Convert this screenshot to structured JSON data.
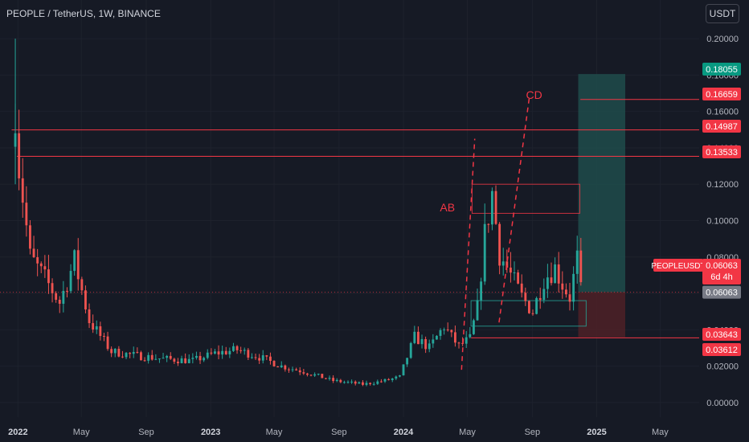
{
  "header": {
    "pair_title": "PEOPLE / TetherUS, 1W, BINANCE",
    "currency_button": "USDT"
  },
  "colors": {
    "background": "#161a25",
    "grid": "#1e222d",
    "bull": "#26a69a",
    "bear": "#ef5350",
    "level_line": "#f23645",
    "target_zone": "#1f4c4b",
    "stop_zone": "#4a2027",
    "current_price_tag": "#787b86"
  },
  "chart_data": {
    "type": "candlestick",
    "ylim": [
      -0.008,
      0.208
    ],
    "yticks": [
      "0.20000",
      "0.18000",
      "0.16000",
      "0.14000",
      "0.12000",
      "0.10000",
      "0.08000",
      "0.06000",
      "0.04000",
      "0.02000",
      "0.00000"
    ],
    "ytick_values": [
      0.2,
      0.18,
      0.16,
      0.14,
      0.12,
      0.1,
      0.08,
      0.06,
      0.04,
      0.02,
      0.0
    ],
    "xlim": [
      "2021-11-28",
      "2025-07-14"
    ],
    "xticks": [
      {
        "label": "2022",
        "date": "2022-01-01"
      },
      {
        "label": "May",
        "date": "2022-05-01"
      },
      {
        "label": "Sep",
        "date": "2022-09-01"
      },
      {
        "label": "2023",
        "date": "2023-01-01"
      },
      {
        "label": "May",
        "date": "2023-05-01"
      },
      {
        "label": "Sep",
        "date": "2023-09-01"
      },
      {
        "label": "2024",
        "date": "2024-01-01"
      },
      {
        "label": "May",
        "date": "2024-05-01"
      },
      {
        "label": "Sep",
        "date": "2024-09-01"
      },
      {
        "label": "2025",
        "date": "2025-01-01"
      },
      {
        "label": "May",
        "date": "2025-05-01"
      }
    ],
    "candle_start": "2021-12-27",
    "candle_interval_days": 7,
    "close_path": [
      [
        0,
        0.148
      ],
      [
        1,
        0.13
      ],
      [
        4,
        0.08
      ],
      [
        8,
        0.068
      ],
      [
        12,
        0.055
      ],
      [
        16,
        0.078
      ],
      [
        20,
        0.045
      ],
      [
        26,
        0.028
      ],
      [
        32,
        0.026
      ],
      [
        40,
        0.024
      ],
      [
        48,
        0.023
      ],
      [
        54,
        0.027
      ],
      [
        60,
        0.029
      ],
      [
        66,
        0.025
      ],
      [
        72,
        0.02
      ],
      [
        78,
        0.017
      ],
      [
        86,
        0.012
      ],
      [
        94,
        0.01
      ],
      [
        100,
        0.012
      ],
      [
        104,
        0.014
      ],
      [
        108,
        0.036
      ],
      [
        112,
        0.03
      ],
      [
        116,
        0.042
      ],
      [
        118,
        0.036
      ],
      [
        120,
        0.031
      ],
      [
        123,
        0.035
      ],
      [
        125,
        0.052
      ],
      [
        127,
        0.092
      ],
      [
        129,
        0.115
      ],
      [
        131,
        0.082
      ],
      [
        134,
        0.07
      ],
      [
        137,
        0.058
      ],
      [
        140,
        0.05
      ],
      [
        143,
        0.068
      ],
      [
        146,
        0.074
      ],
      [
        148,
        0.065
      ],
      [
        150,
        0.058
      ],
      [
        152,
        0.079
      ],
      [
        153,
        0.061
      ]
    ],
    "levels": [
      {
        "price": 0.18055,
        "label": "0.18055",
        "color": "#089981"
      },
      {
        "price": 0.16659,
        "label": "0.16659",
        "color": "#f23645"
      },
      {
        "price": 0.14987,
        "label": "0.14987",
        "color": "#f23645"
      },
      {
        "price": 0.13533,
        "label": "0.13533",
        "color": "#f23645"
      },
      {
        "price": 0.03643,
        "label": "0.03643",
        "color": "#f23645"
      },
      {
        "price": 0.03612,
        "label": "0.03612",
        "color": "#f23645"
      }
    ],
    "current_price": {
      "price": 0.06063,
      "label": "0.06063"
    },
    "symbol_tag": {
      "symbol": "PEOPLEUSDT",
      "price": "0.06063",
      "countdown": "6d 4h"
    },
    "annotations": [
      {
        "text": "AB",
        "price": 0.105,
        "date": "2024-03-10",
        "color": "#f23645"
      },
      {
        "text": "CD",
        "price": 0.167,
        "date": "2024-08-20",
        "color": "#f23645"
      }
    ],
    "position": {
      "start": "2024-11-27",
      "end": "2025-02-24",
      "entry": 0.06063,
      "target": 0.18055,
      "stop": 0.036
    },
    "boxes": [
      {
        "start": "2024-05-10",
        "end": "2024-11-30",
        "top": 0.12,
        "bottom": 0.104,
        "color": "#f23645"
      },
      {
        "start": "2024-05-08",
        "end": "2024-12-12",
        "top": 0.056,
        "bottom": 0.042,
        "color": "#26a69a"
      }
    ],
    "dashed_lines": [
      {
        "from": [
          "2024-04-20",
          0.018
        ],
        "to": [
          "2024-05-15",
          0.145
        ]
      },
      {
        "from": [
          "2024-06-30",
          0.044
        ],
        "to": [
          "2024-08-26",
          0.167
        ]
      }
    ]
  }
}
